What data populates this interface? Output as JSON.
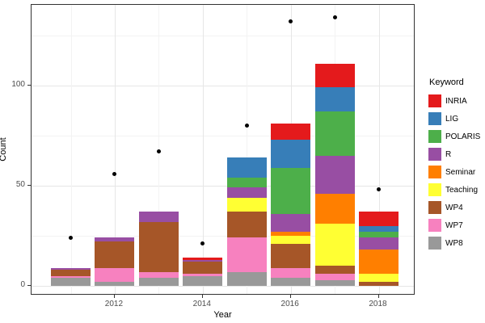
{
  "legend": {
    "title": "Keyword",
    "position": "right"
  },
  "chart_data": {
    "type": "bar",
    "subtype": "stacked-bars-with-scatter-points",
    "title": "",
    "xlabel": "Year",
    "ylabel": "Count",
    "x": [
      2011,
      2012,
      2013,
      2014,
      2015,
      2016,
      2017,
      2018
    ],
    "x_tick_labels": [
      "2012",
      "2014",
      "2016",
      "2018"
    ],
    "x_tick_years": [
      2012,
      2014,
      2016,
      2018
    ],
    "y_tick_labels": [
      "0",
      "50",
      "100"
    ],
    "y_tick_values": [
      0,
      50,
      100
    ],
    "y_minor_gridline_values": [
      25,
      75,
      125
    ],
    "ylim": [
      -5,
      140
    ],
    "grid": "on",
    "legend_position": "right",
    "stacking_note": "series listed in legend order; stacked bottom-to-top in reverse legend order (WP8 at bottom, INRIA on top)",
    "series": [
      {
        "name": "INRIA",
        "color": "#E41A1C",
        "values": [
          0,
          0,
          0,
          1,
          0,
          8,
          12,
          7
        ]
      },
      {
        "name": "LIG",
        "color": "#377EB8",
        "values": [
          0,
          0,
          0,
          0,
          10,
          14,
          12,
          3
        ]
      },
      {
        "name": "POLARIS",
        "color": "#4DAF4A",
        "values": [
          0,
          0,
          0,
          0,
          5,
          23,
          22,
          3
        ]
      },
      {
        "name": "R",
        "color": "#984EA3",
        "values": [
          1,
          2,
          5,
          1,
          5,
          9,
          19,
          6
        ]
      },
      {
        "name": "Seminar",
        "color": "#FF7F00",
        "values": [
          0,
          0,
          0,
          0,
          0,
          2,
          15,
          12
        ]
      },
      {
        "name": "Teaching",
        "color": "#FFFF33",
        "values": [
          0,
          0,
          0,
          0,
          7,
          4,
          21,
          4
        ]
      },
      {
        "name": "WP4",
        "color": "#A65628",
        "values": [
          3,
          13,
          25,
          6,
          13,
          12,
          4,
          2
        ]
      },
      {
        "name": "WP7",
        "color": "#F781BF",
        "values": [
          1,
          7,
          3,
          1,
          17,
          5,
          3,
          0
        ]
      },
      {
        "name": "WP8",
        "color": "#999999",
        "values": [
          4,
          2,
          4,
          5,
          7,
          4,
          3,
          0
        ]
      }
    ],
    "bar_totals": [
      9,
      24,
      37,
      14,
      64,
      81,
      111,
      37
    ],
    "points": {
      "name": "black-dots",
      "color": "#000000",
      "values": [
        24,
        56,
        67,
        21,
        80,
        132,
        134,
        48
      ]
    }
  }
}
